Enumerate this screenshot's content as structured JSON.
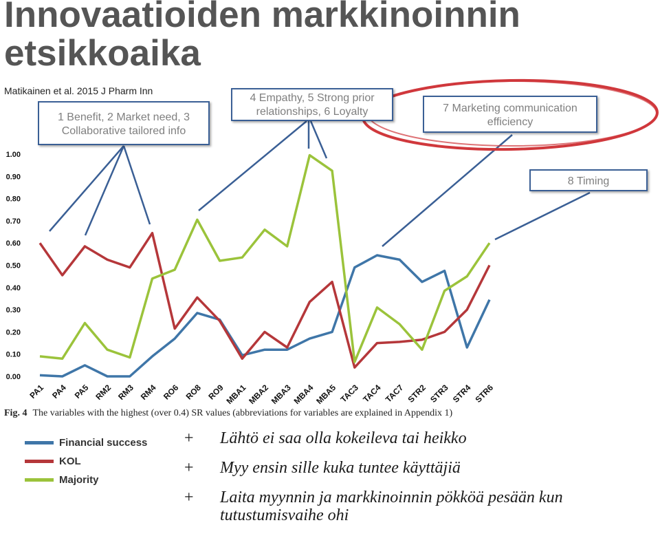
{
  "slide": {
    "title": "Innovaatioiden markkinoinnin etsikkoaika",
    "citation": "Matikainen et al. 2015 J Pharm Inn",
    "callouts": [
      {
        "text": "1 Benefit, 2 Market need, 3 Collaborative tailored info"
      },
      {
        "text": "4 Empathy, 5 Strong prior relationships, 6 Loyalty"
      },
      {
        "text": "7 Marketing communication efficiency"
      },
      {
        "text": "8 Timing"
      }
    ],
    "figure_label": "Fig. 4",
    "figure_caption": "The variables with the highest (over 0.4) SR values (abbreviations for variables are explained in Appendix 1)",
    "bullets": [
      {
        "marker": "+",
        "text": "Lähtö ei saa olla kokeileva tai heikko"
      },
      {
        "marker": "+",
        "text": "Myy ensin sille kuka tuntee käyttäjiä"
      },
      {
        "marker": "+",
        "text": "Laita myynnin ja markkinoinnin pökköä pesään kun tutustumisvaihe ohi"
      }
    ],
    "colors": {
      "callout_border": "#3a5f95",
      "highlight_ellipse": "#d0383c"
    }
  },
  "chart_data": {
    "type": "line",
    "categories": [
      "PA1",
      "PA4",
      "PA5",
      "RM2",
      "RM3",
      "RM4",
      "RO6",
      "RO8",
      "RO9",
      "MBA1",
      "MBA2",
      "MBA3",
      "MBA4",
      "MBA5",
      "TAC3",
      "TAC4",
      "TAC7",
      "STR2",
      "STR3",
      "STR4",
      "STR6"
    ],
    "yticks": [
      "0.00",
      "0.10",
      "0.20",
      "0.30",
      "0.40",
      "0.50",
      "0.60",
      "0.70",
      "0.80",
      "0.90",
      "1.00"
    ],
    "ylim": [
      0,
      1.0
    ],
    "grid": false,
    "legend_position": "bottom-left",
    "series": [
      {
        "name": "Financial success",
        "color": "#3f76a8",
        "values": [
          0.005,
          0.0,
          0.05,
          0.0,
          0.0,
          0.09,
          0.17,
          0.285,
          0.255,
          0.095,
          0.12,
          0.12,
          0.17,
          0.2,
          0.49,
          0.545,
          0.525,
          0.425,
          0.475,
          0.13,
          0.345
        ]
      },
      {
        "name": "KOL",
        "color": "#b5373a",
        "values": [
          0.6,
          0.455,
          0.585,
          0.525,
          0.49,
          0.645,
          0.215,
          0.355,
          0.25,
          0.08,
          0.2,
          0.13,
          0.335,
          0.425,
          0.04,
          0.15,
          0.155,
          0.165,
          0.2,
          0.3,
          0.5
        ]
      },
      {
        "name": "Majority",
        "color": "#9bc33b",
        "values": [
          0.09,
          0.08,
          0.24,
          0.12,
          0.085,
          0.44,
          0.48,
          0.705,
          0.52,
          0.535,
          0.66,
          0.585,
          0.995,
          0.925,
          0.065,
          0.31,
          0.235,
          0.12,
          0.385,
          0.45,
          0.6
        ]
      }
    ]
  }
}
